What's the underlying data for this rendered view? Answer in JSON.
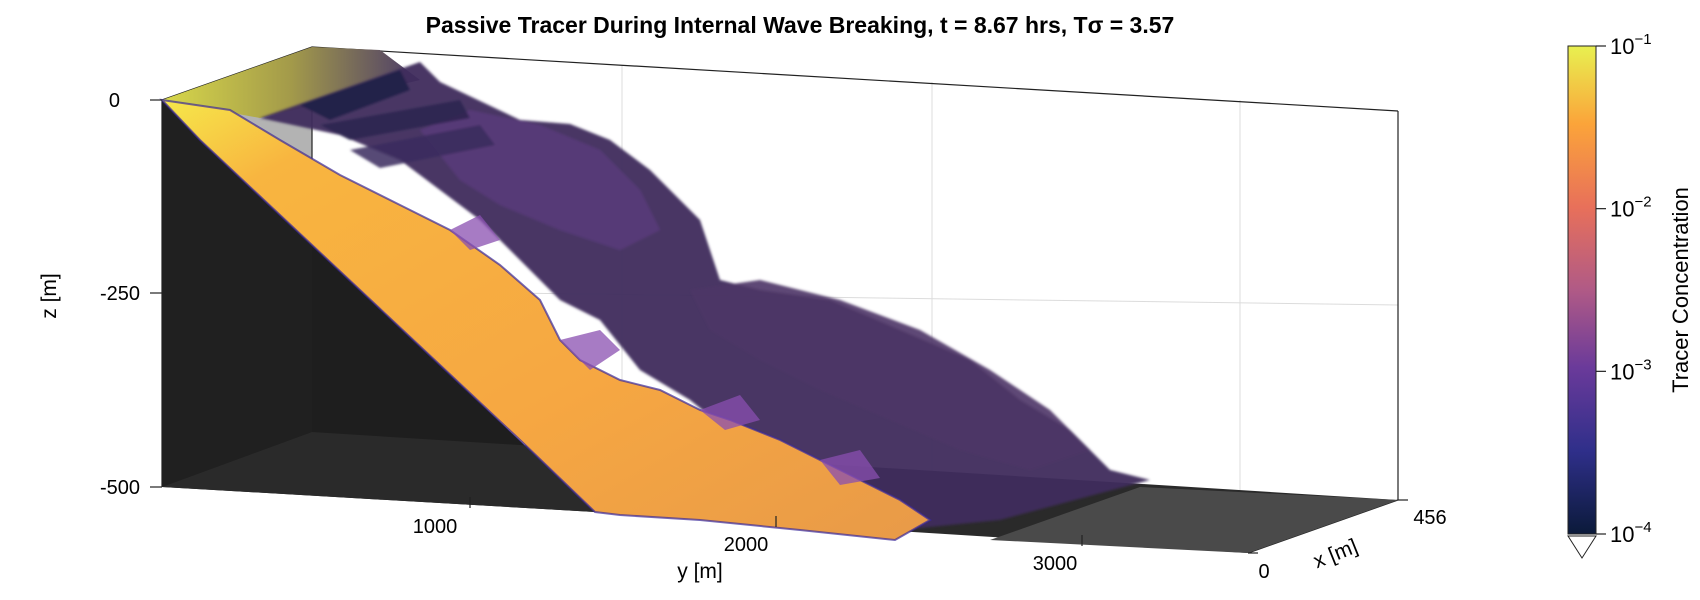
{
  "chart_data": {
    "type": "volume-3d",
    "title": "Passive Tracer During Internal Wave Breaking, t = 8.67 hrs, Tσ = 3.57",
    "axes": {
      "x": {
        "label": "x [m]",
        "ticks": [
          "0",
          "456"
        ],
        "range": [
          0,
          456
        ]
      },
      "y": {
        "label": "y [m]",
        "ticks": [
          "1000",
          "2000",
          "3000"
        ]
      },
      "z": {
        "label": "z [m]",
        "ticks": [
          "0",
          "-250",
          "-500"
        ],
        "range": [
          -500,
          0
        ]
      }
    },
    "colorbar": {
      "label": "Tracer Concentration",
      "scale": "log",
      "range": [
        0.0001,
        0.1
      ],
      "ticks": [
        {
          "base": "10",
          "exp": "−1",
          "value": 0.1
        },
        {
          "base": "10",
          "exp": "−2",
          "value": 0.01
        },
        {
          "base": "10",
          "exp": "−3",
          "value": 0.001
        },
        {
          "base": "10",
          "exp": "−4",
          "value": 0.0001
        }
      ],
      "colors": [
        "#0b1a3a",
        "#2f2f8a",
        "#6a3a9a",
        "#b05a86",
        "#e8705a",
        "#fba43a",
        "#e8f050"
      ]
    },
    "colors": {
      "bathymetry": "#1e1e1e",
      "floor": "#4a4a4a",
      "plume_core": "#f6a742",
      "plume_edge": "#4a2a8a",
      "cloud": "#3e2c5c"
    }
  }
}
